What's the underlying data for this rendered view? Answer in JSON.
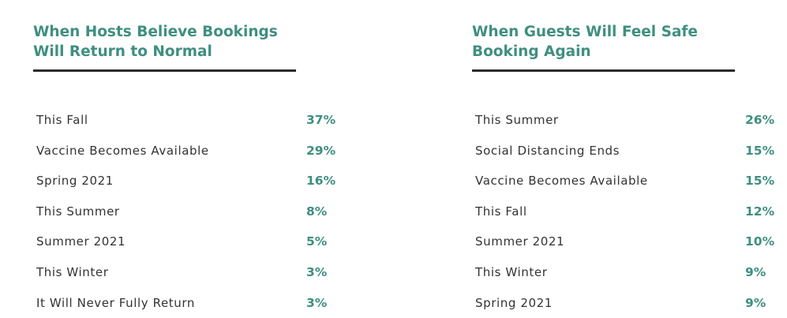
{
  "panels": [
    {
      "title_lines": [
        "When Hosts Believe Bookings",
        "Will Return to Normal"
      ],
      "rows": [
        [
          "This Fall",
          "37%"
        ],
        [
          "Vaccine Becomes Available",
          "29%"
        ],
        [
          "Spring 2021",
          "16%"
        ],
        [
          "This Summer",
          "8%"
        ],
        [
          "Summer 2021",
          "5%"
        ],
        [
          "This Winter",
          "3%"
        ],
        [
          "It Will Never Fully Return",
          "3%"
        ]
      ]
    },
    {
      "title_lines": [
        "When Guests Will Feel Safe",
        "Booking Again"
      ],
      "rows": [
        [
          "This Summer",
          "26%"
        ],
        [
          "Social Distancing Ends",
          "15%"
        ],
        [
          "Vaccine Becomes Available",
          "15%"
        ],
        [
          "This Fall",
          "12%"
        ],
        [
          "Summer 2021",
          "10%"
        ],
        [
          "This Winter",
          "9%"
        ],
        [
          "Spring 2021",
          "9%"
        ]
      ]
    }
  ]
}
